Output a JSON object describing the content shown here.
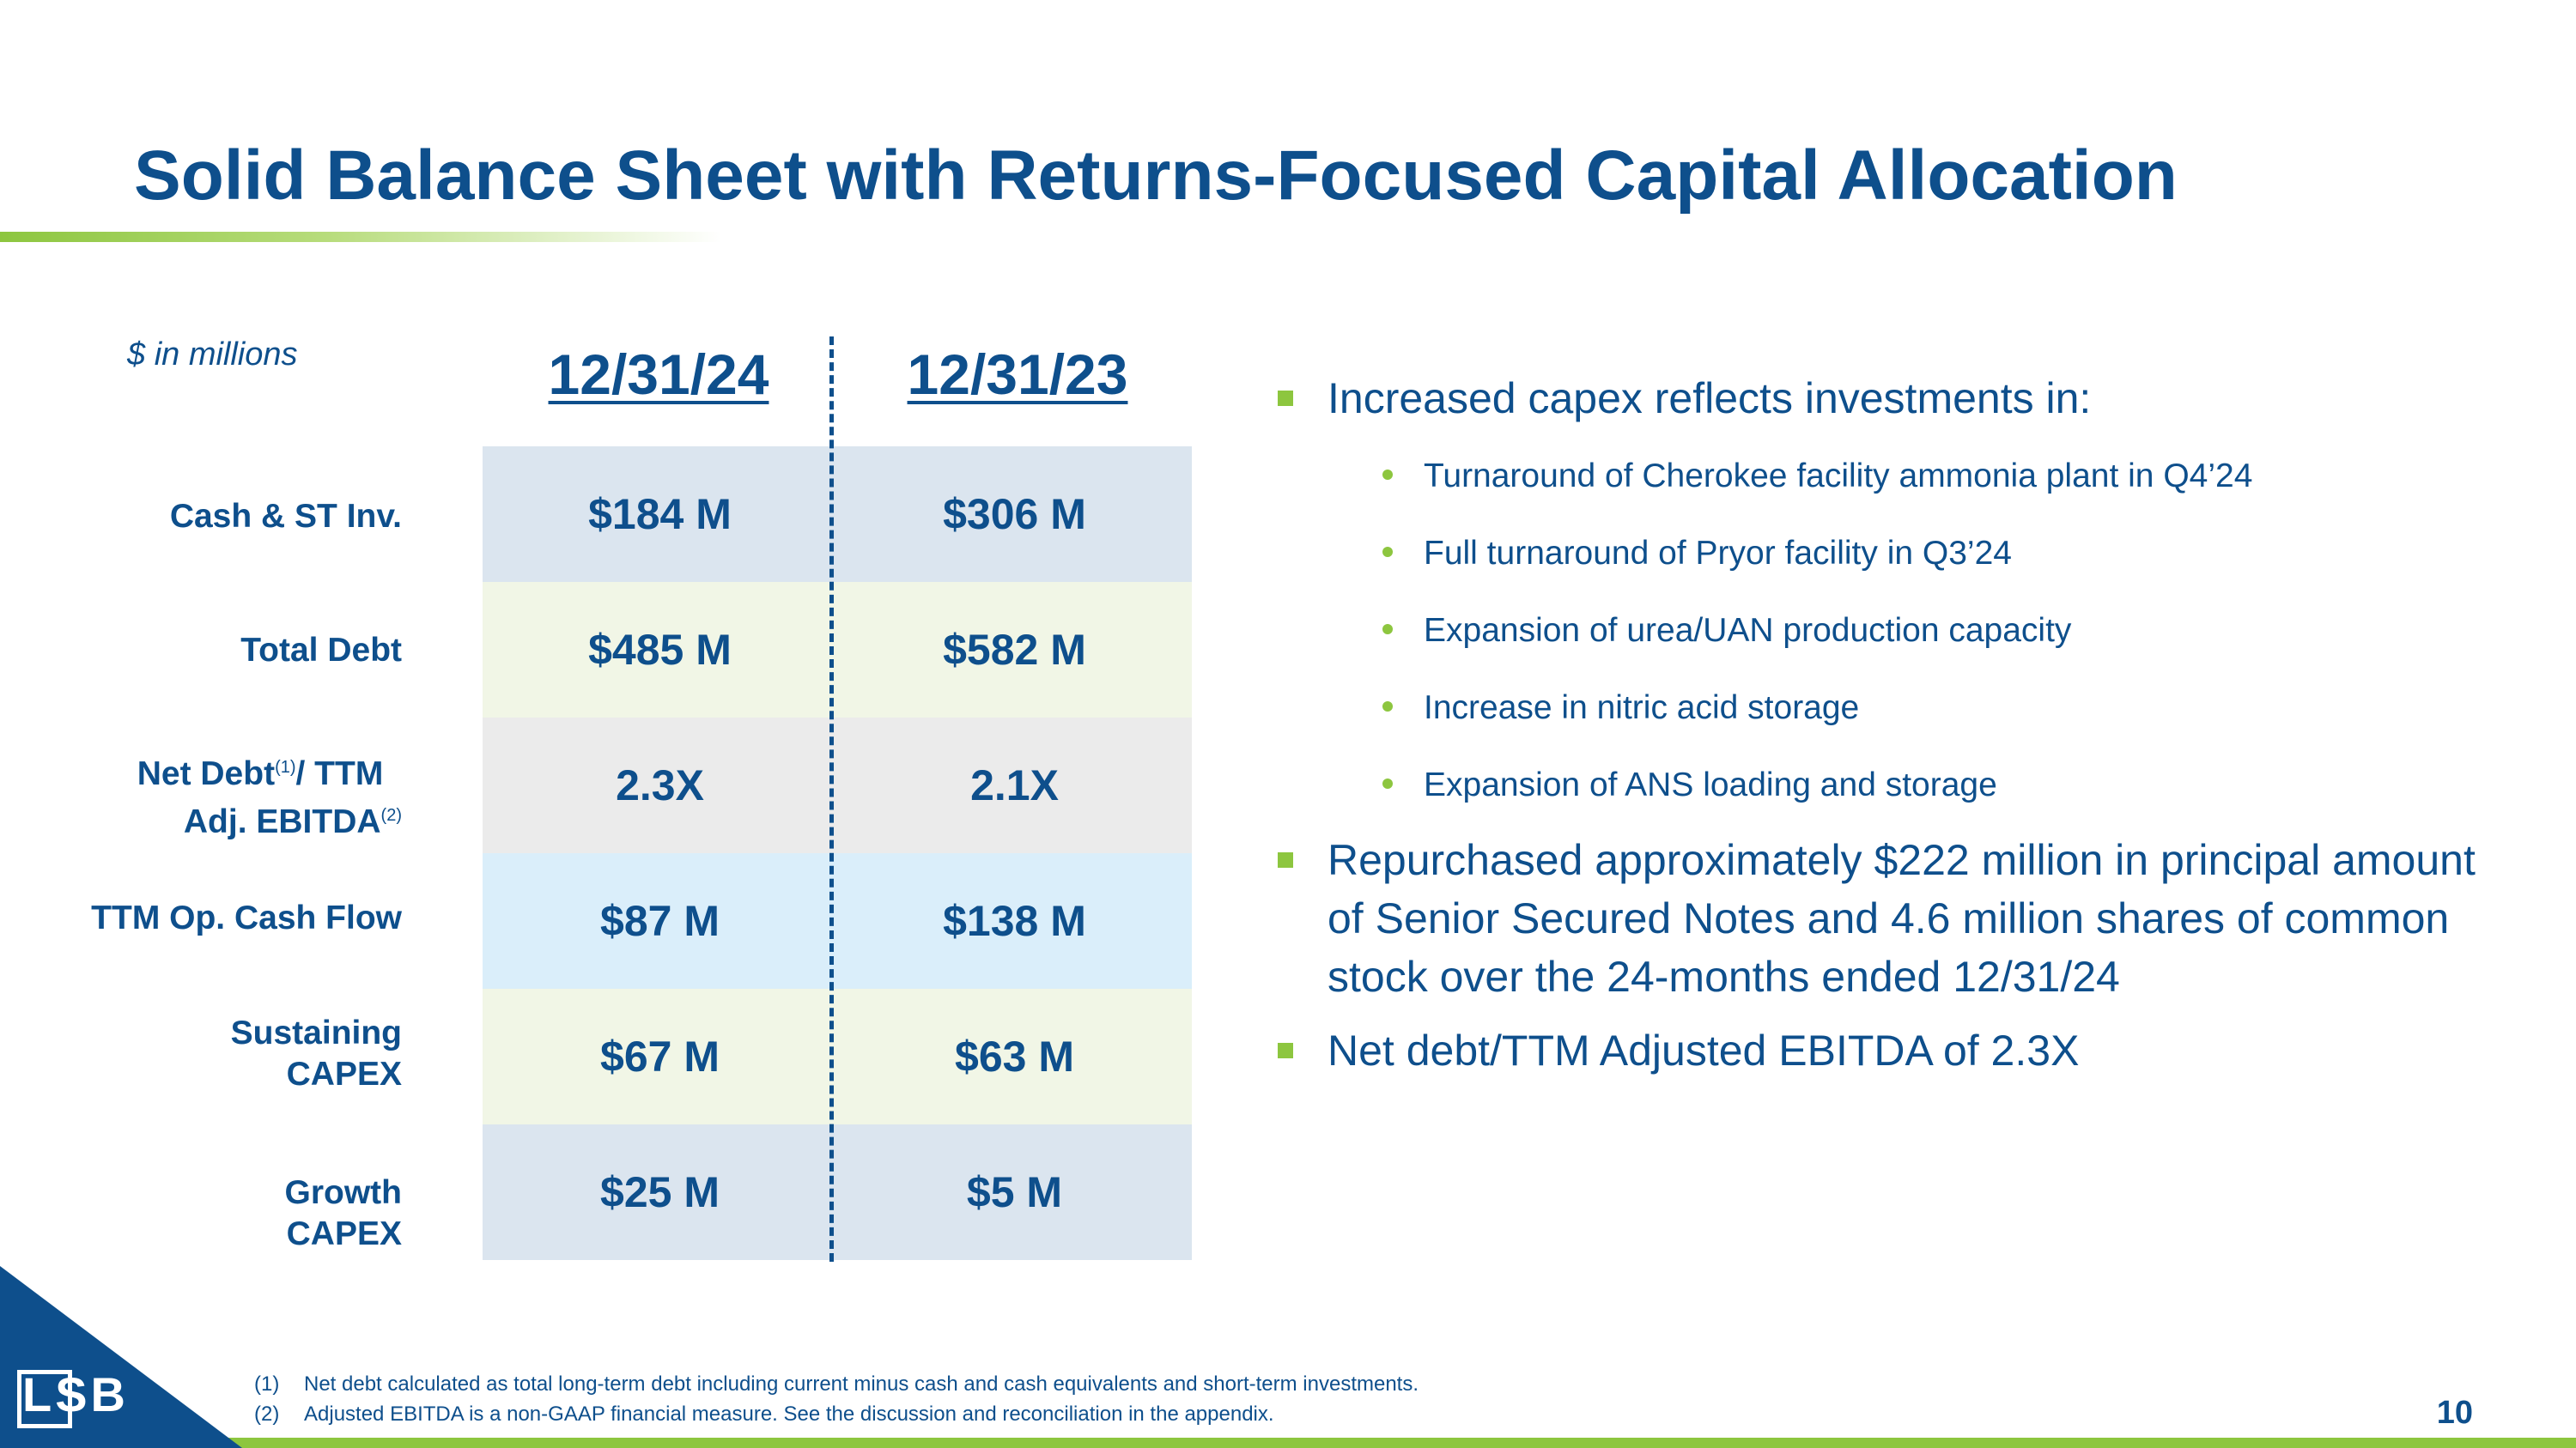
{
  "title": "Solid Balance Sheet with Returns-Focused Capital Allocation",
  "units_note": "$ in millions",
  "columns": [
    "12/31/24",
    "12/31/23"
  ],
  "rows": [
    {
      "label": "Cash & ST Inv.",
      "v1": "$184 M",
      "v2": "$306 M",
      "bg": "#dbe5ef"
    },
    {
      "label": "Total Debt",
      "v1": "$485 M",
      "v2": "$582 M",
      "bg": "#f1f6e6"
    },
    {
      "label_line1": "Net Debt",
      "sup1": "(1)",
      "label_line1b": "/ TTM",
      "label_line2": "Adj. EBITDA",
      "sup2": "(2)",
      "v1": "2.3X",
      "v2": "2.1X",
      "bg": "#ebebeb"
    },
    {
      "label": "TTM Op. Cash Flow",
      "v1": "$87 M",
      "v2": "$138 M",
      "bg": "#daeefa"
    },
    {
      "label_line1": "Sustaining",
      "label_line2": "CAPEX",
      "v1": "$67 M",
      "v2": "$63 M",
      "bg": "#f1f6e6"
    },
    {
      "label_line1": "Growth",
      "label_line2": "CAPEX",
      "v1": "$25 M",
      "v2": "$5 M",
      "bg": "#dbe5ef"
    }
  ],
  "bullets": {
    "b1": "Increased capex reflects investments in:",
    "subs": [
      "Turnaround of Cherokee facility ammonia plant in Q4’24",
      "Full turnaround of Pryor facility in Q3’24",
      "Expansion of urea/UAN production capacity",
      "Increase in nitric acid storage",
      "Expansion of ANS loading and storage"
    ],
    "b2": "Repurchased approximately $222 million in principal amount of Senior Secured Notes and 4.6 million shares of common stock over the 24-months ended 12/31/24",
    "b3": "Net debt/TTM Adjusted EBITDA of 2.3X"
  },
  "footnotes": [
    {
      "num": "(1)",
      "text": "Net debt calculated as total long-term debt including current  minus cash and cash equivalents and short-term investments."
    },
    {
      "num": "(2)",
      "text": "Adjusted EBITDA is a non-GAAP financial measure.  See the discussion and reconciliation in the appendix."
    }
  ],
  "page_number": "10",
  "logo_text": "LSB",
  "colors": {
    "brand_blue": "#0e4f8c",
    "accent_green": "#8dc63f"
  }
}
